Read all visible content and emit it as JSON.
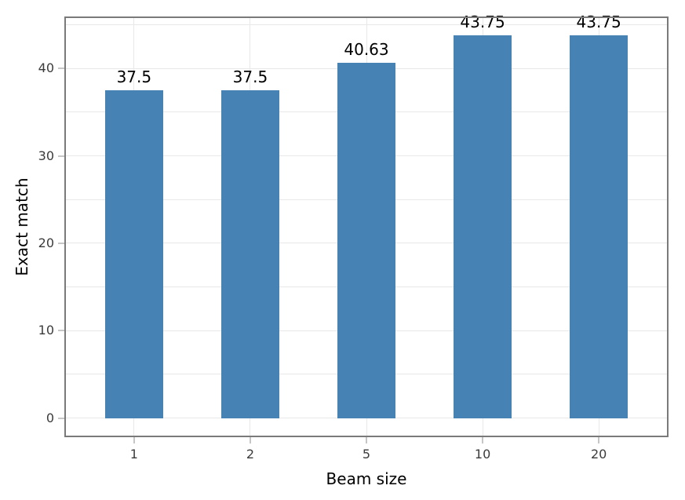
{
  "chart_data": {
    "type": "bar",
    "title": "",
    "xlabel": "Beam size",
    "ylabel": "Exact match",
    "categories": [
      "1",
      "2",
      "5",
      "10",
      "20"
    ],
    "values": [
      37.5,
      37.5,
      40.63,
      43.75,
      43.75
    ],
    "bar_labels": [
      "37.5",
      "37.5",
      "40.63",
      "43.75",
      "43.75"
    ],
    "y_ticks": [
      0,
      10,
      20,
      30,
      40
    ],
    "y_gridlines": [
      0,
      5,
      10,
      15,
      20,
      25,
      30,
      35,
      40,
      45
    ],
    "ylim": [
      -2.1875,
      45.9375
    ],
    "bar_width_ratio": 0.5,
    "grid": true,
    "legend_position": "none",
    "colors": {
      "bar": "#4682b4",
      "grid": "#e8e8e8",
      "spine": "#7a7a7a",
      "tick": "#c6c6c6",
      "tick_label": "#3b3b3b",
      "text": "#000000",
      "background": "#ffffff"
    }
  }
}
